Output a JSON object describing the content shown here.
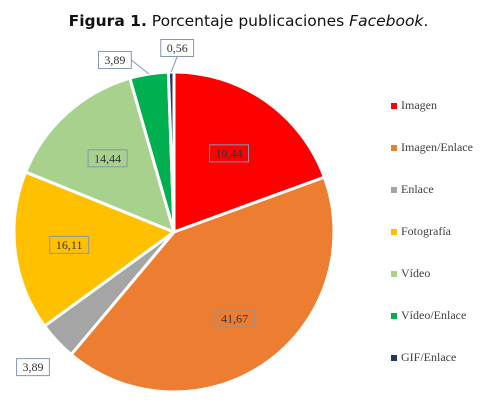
{
  "title": {
    "figure": "Figura 1.",
    "text": "Porcentaje publicaciones",
    "brand": "Facebook",
    "end": "."
  },
  "chart_data": {
    "type": "pie",
    "title": "Figura 1. Porcentaje publicaciones Facebook.",
    "legend_position": "right",
    "slices": [
      {
        "label": "Imagen",
        "value": 19.44,
        "text": "19,44",
        "color": "#ff0000"
      },
      {
        "label": "Imagen/Enlace",
        "value": 41.67,
        "text": "41,67",
        "color": "#ed7d31"
      },
      {
        "label": "Enlace",
        "value": 3.89,
        "text": "3,89",
        "color": "#a5a5a5"
      },
      {
        "label": "Fotografía",
        "value": 16.11,
        "text": "16,11",
        "color": "#ffc000"
      },
      {
        "label": "Vídeo",
        "value": 14.44,
        "text": "14,44",
        "color": "#a9d18e"
      },
      {
        "label": "Vídeo/Enlace",
        "value": 3.89,
        "text": "3,89",
        "color": "#00b050"
      },
      {
        "label": "GIF/Enlace",
        "value": 0.56,
        "text": "0,56",
        "color": "#203864"
      }
    ]
  }
}
